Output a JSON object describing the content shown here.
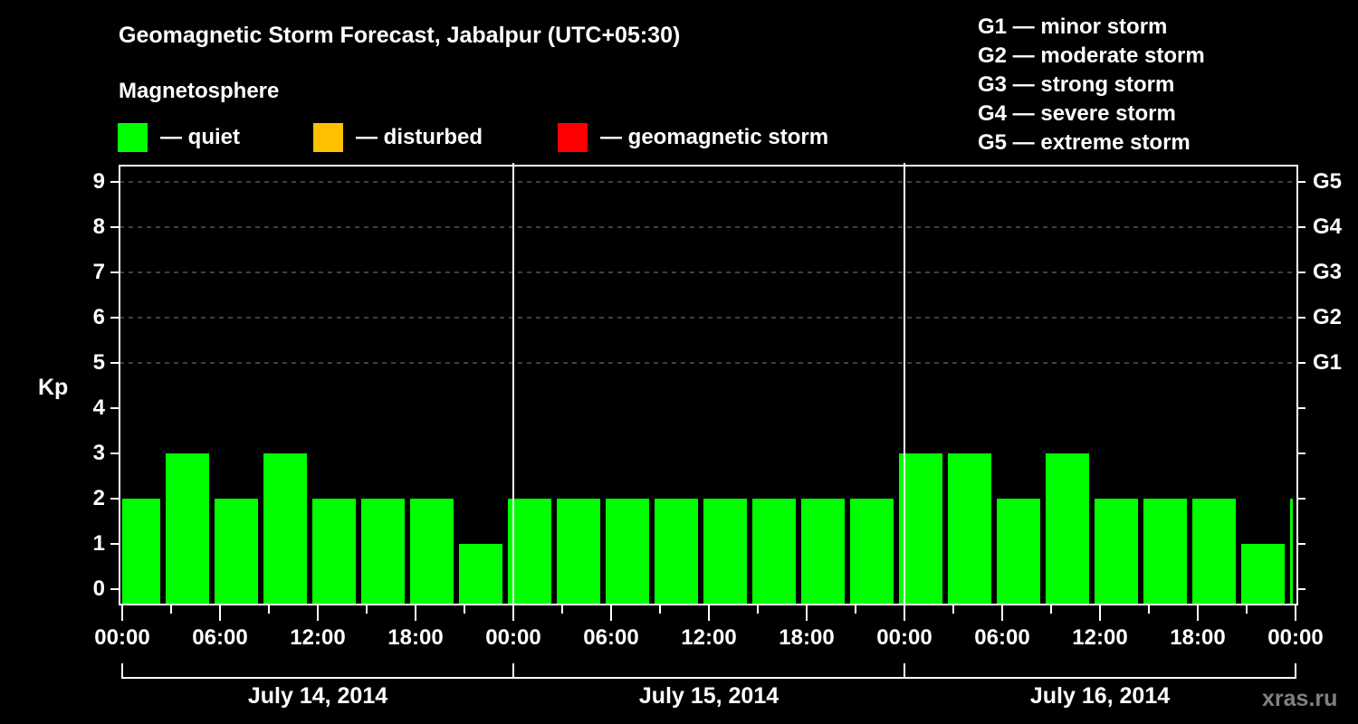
{
  "header": {
    "title": "Geomagnetic Storm Forecast, Jabalpur (UTC+05:30)",
    "subtitle": "Magnetosphere"
  },
  "legend": [
    {
      "label": "— quiet",
      "color": "#00ff00"
    },
    {
      "label": "— disturbed",
      "color": "#ffc000"
    },
    {
      "label": "— geomagnetic storm",
      "color": "#ff0000"
    }
  ],
  "g_scale": [
    {
      "label": "G1 — minor storm"
    },
    {
      "label": "G2 — moderate storm"
    },
    {
      "label": "G3 — strong storm"
    },
    {
      "label": "G4 — severe storm"
    },
    {
      "label": "G5 — extreme storm"
    }
  ],
  "axes": {
    "ylabel": "Kp",
    "yticks": [
      "0",
      "1",
      "2",
      "3",
      "4",
      "5",
      "6",
      "7",
      "8",
      "9"
    ],
    "gticks": [
      {
        "label": "G1",
        "kp": 5
      },
      {
        "label": "G2",
        "kp": 6
      },
      {
        "label": "G3",
        "kp": 7
      },
      {
        "label": "G4",
        "kp": 8
      },
      {
        "label": "G5",
        "kp": 9
      }
    ],
    "xticks": [
      "00:00",
      "06:00",
      "12:00",
      "18:00",
      "00:00",
      "06:00",
      "12:00",
      "18:00",
      "00:00",
      "06:00",
      "12:00",
      "18:00",
      "00:00"
    ],
    "dates": [
      "July 14, 2014",
      "July 15, 2014",
      "July 16, 2014"
    ]
  },
  "watermark": "xras.ru",
  "colors": {
    "quiet": "#00ff00",
    "disturbed": "#ffc000",
    "storm": "#ff0000",
    "grid": "#808080",
    "axis": "#ffffff",
    "background": "#000000"
  },
  "chart_data": {
    "type": "bar",
    "title": "Geomagnetic Storm Forecast, Jabalpur (UTC+05:30)",
    "xlabel": "",
    "ylabel": "Kp",
    "ylim": [
      0,
      9
    ],
    "grid": "dashed horizontal at Kp 5-9",
    "secondary_y_labels": {
      "5": "G1",
      "6": "G2",
      "7": "G3",
      "8": "G4",
      "9": "G5"
    },
    "interval_hours": 3,
    "start_offset_hours": -0.5,
    "categories": [
      "Jul 14 ~00:00",
      "Jul 14 ~03:00",
      "Jul 14 ~06:00",
      "Jul 14 ~09:00",
      "Jul 14 ~12:00",
      "Jul 14 ~15:00",
      "Jul 14 ~18:00",
      "Jul 14 ~21:00",
      "Jul 15 ~00:00",
      "Jul 15 ~03:00",
      "Jul 15 ~06:00",
      "Jul 15 ~09:00",
      "Jul 15 ~12:00",
      "Jul 15 ~15:00",
      "Jul 15 ~18:00",
      "Jul 15 ~21:00",
      "Jul 16 ~00:00",
      "Jul 16 ~03:00",
      "Jul 16 ~06:00",
      "Jul 16 ~09:00",
      "Jul 16 ~12:00",
      "Jul 16 ~15:00",
      "Jul 16 ~18:00",
      "Jul 16 ~21:00",
      "Jul 17 ~00:00"
    ],
    "values": [
      2,
      3,
      2,
      3,
      2,
      2,
      2,
      1,
      2,
      2,
      2,
      2,
      2,
      2,
      2,
      2,
      3,
      3,
      2,
      3,
      2,
      2,
      2,
      1,
      2
    ],
    "status": [
      "quiet",
      "quiet",
      "quiet",
      "quiet",
      "quiet",
      "quiet",
      "quiet",
      "quiet",
      "quiet",
      "quiet",
      "quiet",
      "quiet",
      "quiet",
      "quiet",
      "quiet",
      "quiet",
      "quiet",
      "quiet",
      "quiet",
      "quiet",
      "quiet",
      "quiet",
      "quiet",
      "quiet",
      "quiet"
    ]
  }
}
